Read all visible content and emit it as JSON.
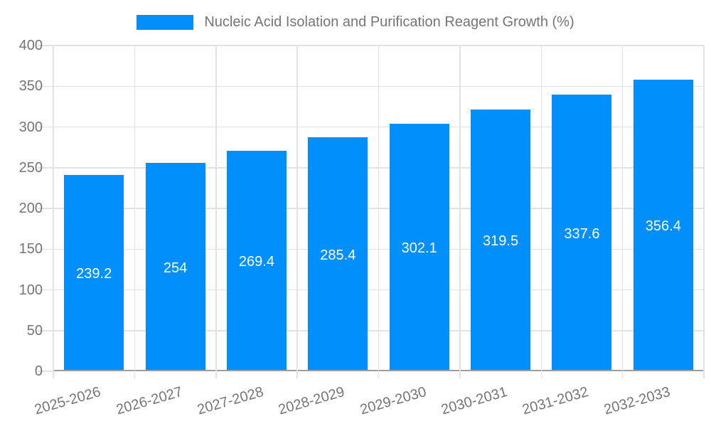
{
  "legend": {
    "swatch_color": "#008FFB",
    "label": "Nucleic Acid Isolation and Purification Reagent Growth (%)"
  },
  "chart_data": {
    "type": "bar",
    "title": "Nucleic Acid Isolation and Purification Reagent Growth (%)",
    "categories": [
      "2025-2026",
      "2026-2027",
      "2027-2028",
      "2028-2029",
      "2029-2030",
      "2030-2031",
      "2031-2032",
      "2032-2033"
    ],
    "values": [
      239.2,
      254,
      269.4,
      285.4,
      302.1,
      319.5,
      337.6,
      356.4
    ],
    "value_labels": [
      "239.2",
      "254",
      "269.4",
      "285.4",
      "302.1",
      "319.5",
      "337.6",
      "356.4"
    ],
    "xlabel": "",
    "ylabel": "",
    "ylim": [
      0,
      400
    ],
    "yticks": [
      0,
      50,
      100,
      150,
      200,
      250,
      300,
      350,
      400
    ],
    "grid": true,
    "legend_position": "top",
    "bar_color": "#008FFB",
    "value_label_color": "#ffffff",
    "axis_text_color": "#757575",
    "gridline_color": "#e2e2e2",
    "axis_line_color": "#9e9e9e"
  }
}
